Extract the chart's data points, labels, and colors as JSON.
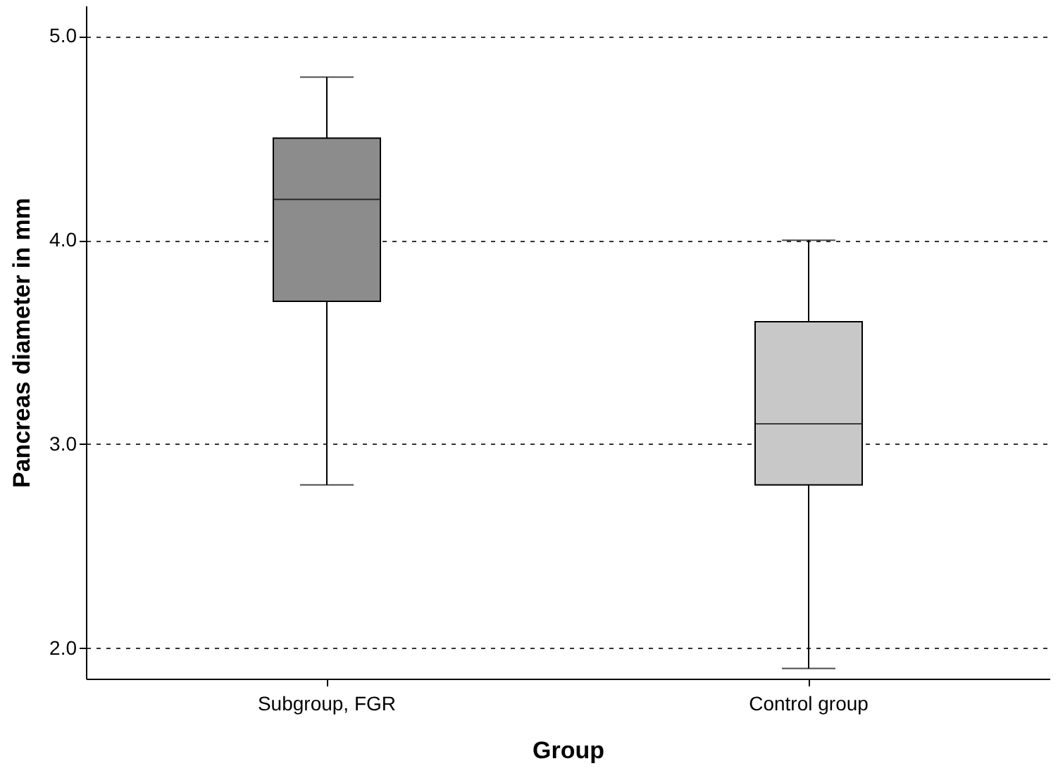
{
  "chart_data": {
    "type": "box",
    "xlabel": "Group",
    "ylabel": "Pancreas diameter in mm",
    "categories": [
      "Subgroup, FGR",
      "Control group"
    ],
    "boxes": [
      {
        "low": 2.8,
        "q1": 3.7,
        "median": 4.2,
        "q3": 4.5,
        "high": 4.8
      },
      {
        "low": 1.9,
        "q1": 2.8,
        "median": 3.1,
        "q3": 3.6,
        "high": 4.0
      }
    ],
    "colors": [
      "#8c8c8c",
      "#c8c8c8"
    ],
    "ylim": [
      1.85,
      5.15
    ],
    "yticks": [
      {
        "value": 2,
        "label": "2.0"
      },
      {
        "value": 3,
        "label": "3.0"
      },
      {
        "value": 4,
        "label": "4.0"
      },
      {
        "value": 5,
        "label": "5.0"
      }
    ],
    "grid": "y"
  }
}
